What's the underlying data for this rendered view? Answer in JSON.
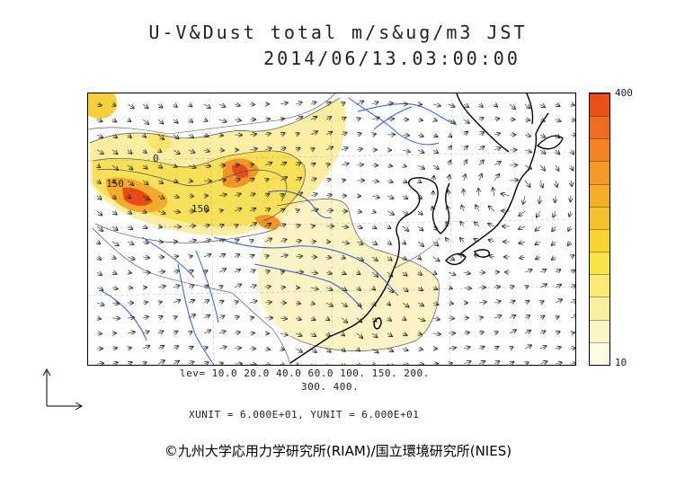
{
  "title": {
    "line1": "U-V&Dust total m/s&ug/m3 JST",
    "line2": "2014/06/13.03:00:00"
  },
  "map": {
    "contour_labels": [
      "0",
      "150",
      "150"
    ]
  },
  "legend": {
    "max_label": "400",
    "min_label": "10",
    "colors": [
      "#fefbe4",
      "#fdf5c2",
      "#fbef9e",
      "#faea74",
      "#f9e24a",
      "#f7d430",
      "#f7c12c",
      "#f6ad2a",
      "#f59a27",
      "#f38424",
      "#f06c1f",
      "#e9501a"
    ]
  },
  "levels": {
    "line1": "lev= 10.0 20.0 40.0 60.0 100. 150. 200.",
    "line2": "300. 400."
  },
  "units": {
    "line": "XUNIT = 6.000E+01, YUNIT = 6.000E+01"
  },
  "credit": "©九州大学応用力学研究所(RIAM)/国立環境研究所(NIES)"
}
